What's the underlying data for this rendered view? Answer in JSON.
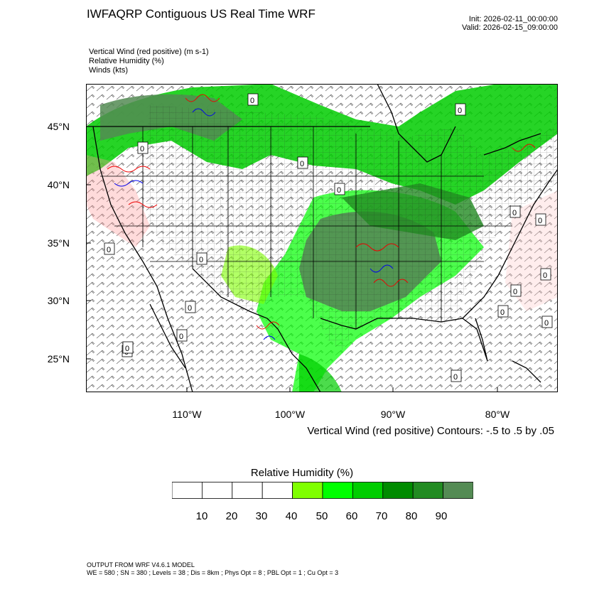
{
  "header": {
    "title": "IWFAQRP Contiguous US Real Time WRF",
    "init": "Init: 2026-02-11_00:00:00",
    "valid": "Valid: 2026-02-15_09:00:00"
  },
  "fields": {
    "vertical_wind": "Vertical Wind (red positive)   (m s-1)",
    "relative_humidity": "Relative Humidity   (%)",
    "winds": "Winds   (kts)"
  },
  "axes": {
    "lat_labels": [
      "45°N",
      "40°N",
      "35°N",
      "30°N",
      "25°N"
    ],
    "lon_labels": [
      "110°W",
      "100°W",
      "90°W",
      "80°W"
    ]
  },
  "contour_note": "Vertical Wind (red positive) Contours: -.5 to .5 by .05",
  "colorbar": {
    "title": "Relative Humidity  (%)",
    "labels": [
      "10",
      "20",
      "30",
      "40",
      "50",
      "60",
      "70",
      "80",
      "90"
    ],
    "colors": [
      "#ffffff",
      "#ffffff",
      "#ffffff",
      "#ffffff",
      "#7fff00",
      "#00ff00",
      "#00cd00",
      "#008b00",
      "#228b22",
      "#548b54"
    ]
  },
  "footer": {
    "model": "OUTPUT FROM WRF V4.6.1 MODEL",
    "config": "WE = 580 ; SN = 380 ; Levels = 38 ; Dis = 8km ; Phys Opt = 8 ; PBL Opt = 1 ; Cu Opt = 3"
  },
  "contour_label": "0"
}
